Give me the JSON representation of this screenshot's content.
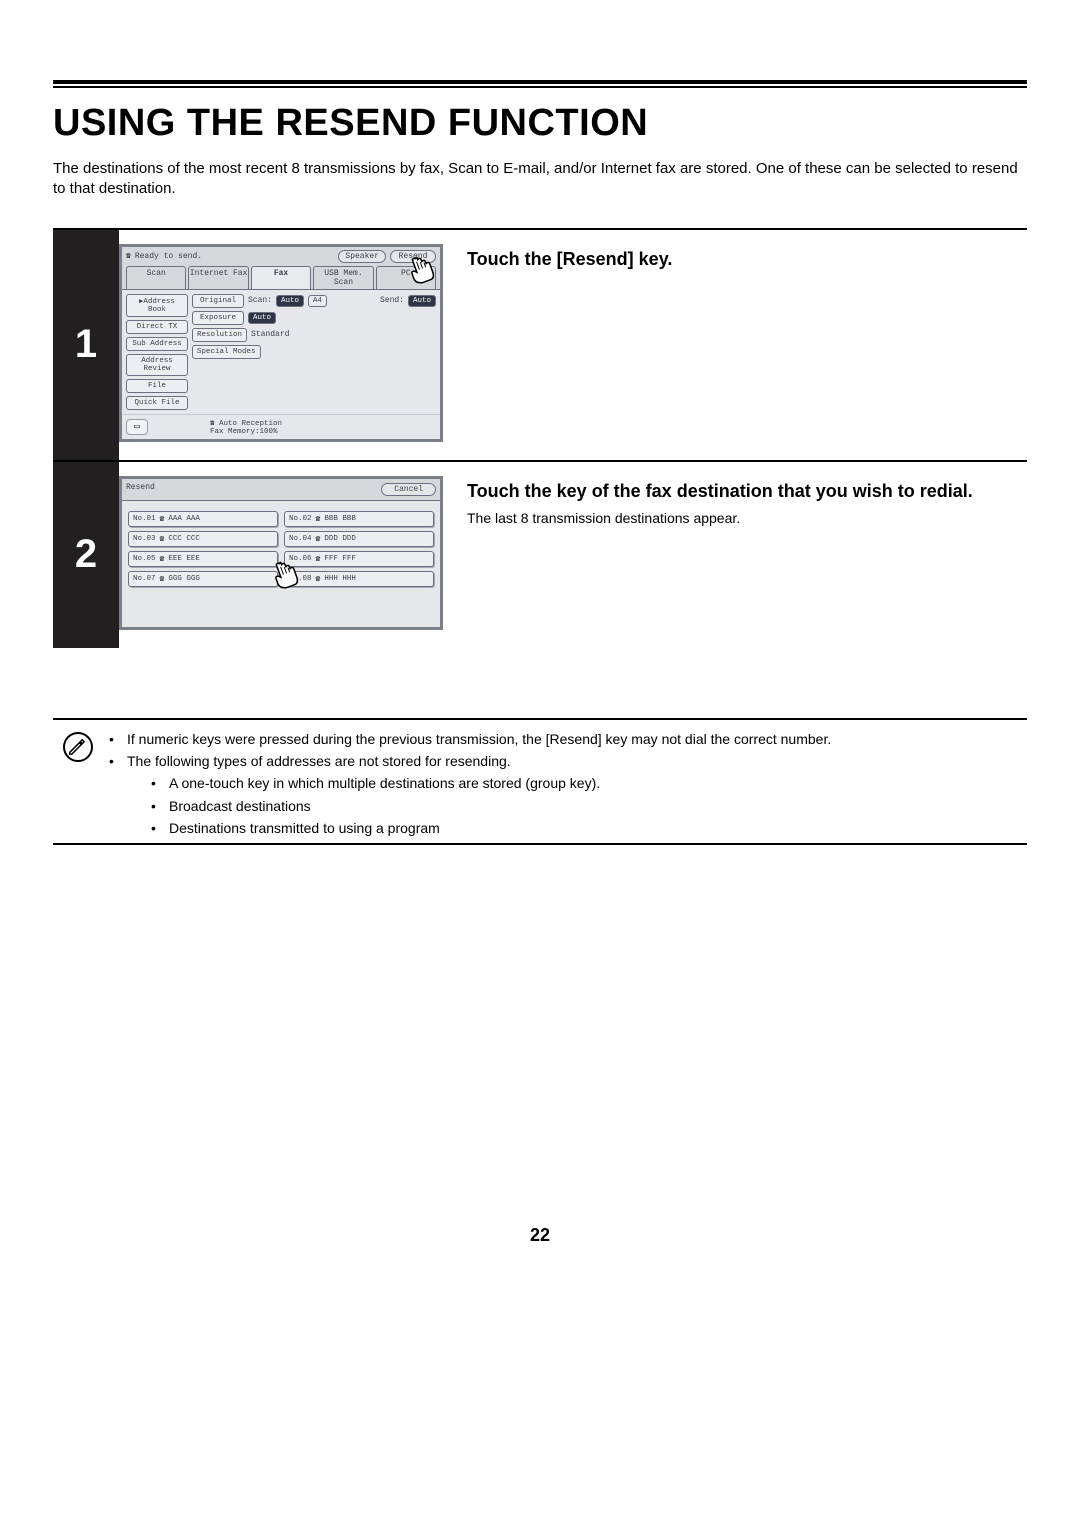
{
  "title": "USING THE RESEND FUNCTION",
  "intro": "The destinations of the most recent 8 transmissions by fax, Scan to E-mail, and/or Internet fax are stored. One of these can be selected to resend to that destination.",
  "page_number": "22",
  "step1": {
    "num": "1",
    "heading": "Touch the [Resend] key.",
    "ui": {
      "status": "Ready to send.",
      "speaker": "Speaker",
      "resend": "Resend",
      "tabs": [
        "Scan",
        "Internet Fax",
        "Fax",
        "USB Mem. Scan",
        "PC"
      ],
      "active_tab_index": 2,
      "left_buttons": [
        "Address Book",
        "Direct TX",
        "Sub Address",
        "Address Review",
        "File",
        "Quick File"
      ],
      "rows": [
        {
          "btn": "Original",
          "label": "Scan:",
          "tag1": "Auto",
          "tag2": "A4",
          "label2": "Send:",
          "tag3": "Auto"
        },
        {
          "btn": "Exposure",
          "tag1": "Auto"
        },
        {
          "btn": "Resolution",
          "label": "Standard"
        },
        {
          "btn": "Special Modes"
        }
      ],
      "footer1": "Auto Reception",
      "footer2": "Fax Memory:100%"
    }
  },
  "step2": {
    "num": "2",
    "heading": "Touch the key of the fax destination that you wish to redial.",
    "body": "The last 8 transmission destinations appear.",
    "ui": {
      "title": "Resend",
      "cancel": "Cancel",
      "items": [
        {
          "no": "No.01",
          "name": "AAA AAA"
        },
        {
          "no": "No.02",
          "name": "BBB BBB"
        },
        {
          "no": "No.03",
          "name": "CCC CCC"
        },
        {
          "no": "No.04",
          "name": "DDD DDD"
        },
        {
          "no": "No.05",
          "name": "EEE EEE"
        },
        {
          "no": "No.06",
          "name": "FFF FFF"
        },
        {
          "no": "No.07",
          "name": "GGG GGG"
        },
        {
          "no": "No.08",
          "name": "HHH HHH"
        }
      ]
    }
  },
  "notes": {
    "items": [
      "If numeric keys were pressed during the previous transmission, the [Resend] key may not dial the correct number.",
      "The following types of addresses are not stored for resending."
    ],
    "subitems": [
      "A one-touch key in which multiple destinations are stored (group key).",
      "Broadcast destinations",
      "Destinations transmitted to using a program"
    ]
  },
  "colors": {
    "panel_border": "#7a7f89",
    "panel_bg": "#d6d8dc",
    "panel_body_bg": "#e5e7ea",
    "btn_bg": "#eceef1",
    "dark_tag": "#2e3546"
  }
}
